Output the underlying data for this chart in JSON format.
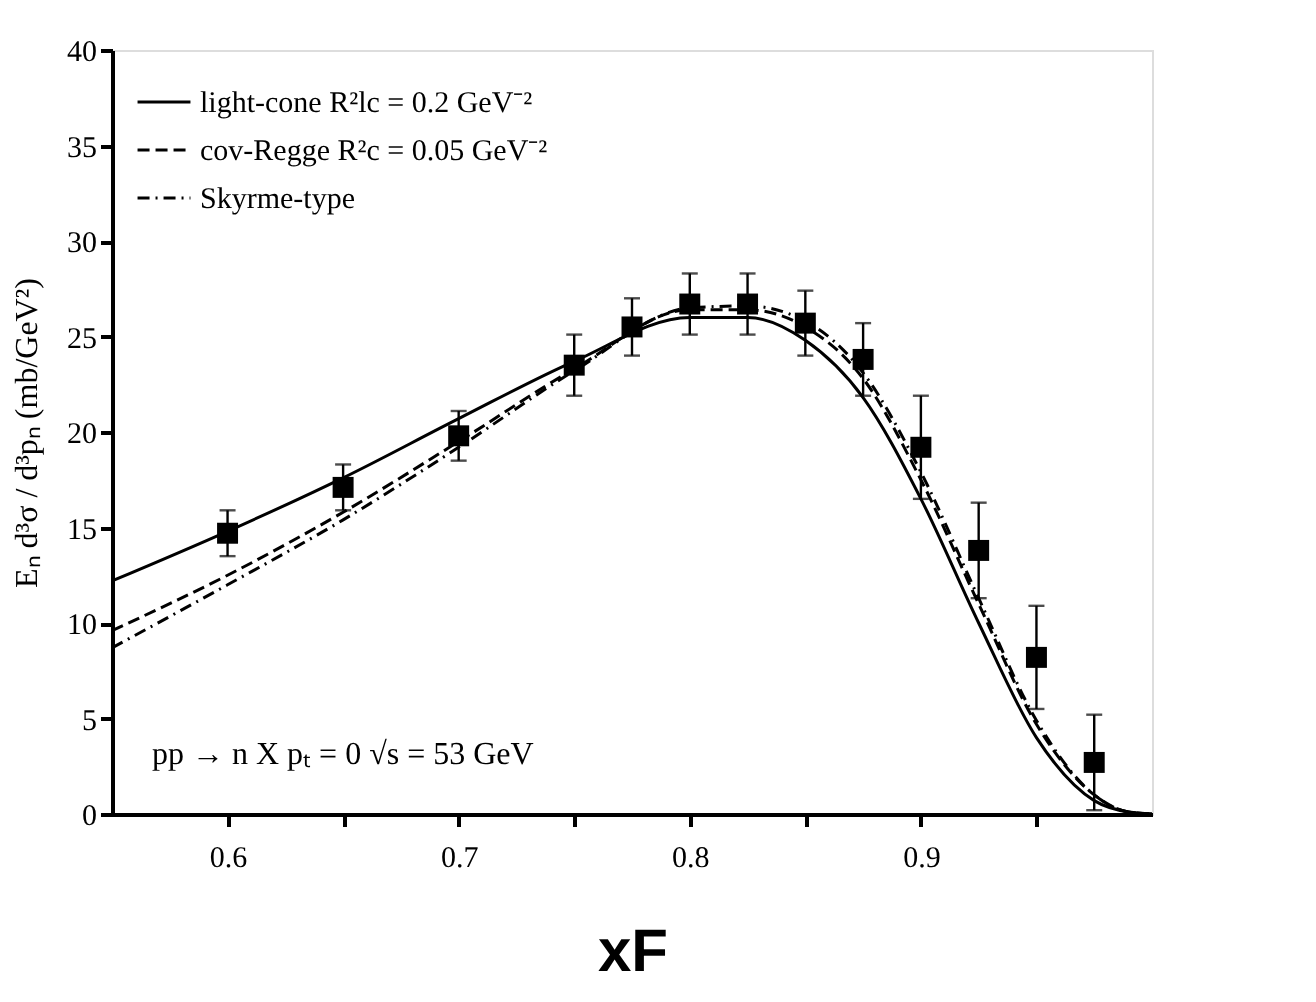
{
  "chart_data": {
    "type": "line",
    "xlabel": "xF",
    "ylabel": "Eₙ d³σ / d³pₙ  (mb/GeV²)",
    "annotations": [
      "pp → n X    pₜ = 0    √s = 53 GeV"
    ],
    "xlim": [
      0.55,
      1.0
    ],
    "ylim": [
      0,
      40
    ],
    "xticks": [
      0.6,
      {
        "value": 0.65,
        "label": null
      },
      0.7,
      {
        "value": 0.75,
        "label": null
      },
      0.8,
      {
        "value": 0.85,
        "label": null
      },
      0.9,
      {
        "value": 0.95,
        "label": null
      }
    ],
    "yticks": [
      0,
      5,
      10,
      15,
      20,
      25,
      30,
      35,
      40
    ],
    "grid": false,
    "legend": "top left",
    "series": [
      {
        "name": "light-cone R²lc = 0.2 GeV⁻²",
        "color": "#000000",
        "line_style": "solid",
        "x": [
          0.55,
          0.6,
          0.65,
          0.7,
          0.75,
          0.8,
          0.825,
          0.85,
          0.875,
          0.9,
          0.925,
          0.95,
          0.975,
          0.99,
          1.0
        ],
        "values": [
          12.2,
          14.8,
          17.6,
          20.7,
          23.7,
          26.0,
          26.0,
          24.8,
          21.8,
          16.5,
          10.0,
          4.0,
          0.7,
          0.1,
          0
        ]
      },
      {
        "name": "cov-Regge R²c = 0.05 GeV⁻²",
        "color": "#000000",
        "line_style": "dashed",
        "x": [
          0.55,
          0.6,
          0.65,
          0.7,
          0.75,
          0.8,
          0.825,
          0.85,
          0.875,
          0.9,
          0.925,
          0.95,
          0.975,
          0.99,
          1.0
        ],
        "values": [
          9.6,
          12.5,
          15.8,
          19.5,
          23.3,
          26.4,
          26.4,
          25.5,
          22.8,
          17.5,
          11.0,
          4.7,
          1.0,
          0.1,
          0
        ]
      },
      {
        "name": "Skyrme-type",
        "color": "#000000",
        "line_style": "dashdot",
        "x": [
          0.55,
          0.6,
          0.65,
          0.7,
          0.75,
          0.8,
          0.825,
          0.85,
          0.875,
          0.9,
          0.925,
          0.95,
          0.975,
          0.99,
          1.0
        ],
        "values": [
          8.7,
          12.0,
          15.4,
          19.2,
          23.2,
          26.5,
          26.6,
          25.8,
          23.1,
          17.9,
          11.3,
          4.9,
          1.0,
          0.1,
          0
        ]
      },
      {
        "type": "scatter",
        "color": "#000000",
        "marker": "square",
        "x": [
          0.6,
          0.65,
          0.7,
          0.75,
          0.775,
          0.8,
          0.825,
          0.85,
          0.875,
          0.9,
          0.925,
          0.95,
          0.975
        ],
        "values": [
          14.7,
          17.1,
          19.8,
          23.5,
          25.5,
          26.7,
          26.7,
          25.7,
          23.8,
          19.2,
          13.8,
          8.2,
          2.7
        ],
        "errors": [
          1.2,
          1.2,
          1.3,
          1.6,
          1.5,
          1.6,
          1.6,
          1.7,
          1.9,
          2.7,
          2.5,
          2.7,
          2.5
        ]
      }
    ]
  }
}
